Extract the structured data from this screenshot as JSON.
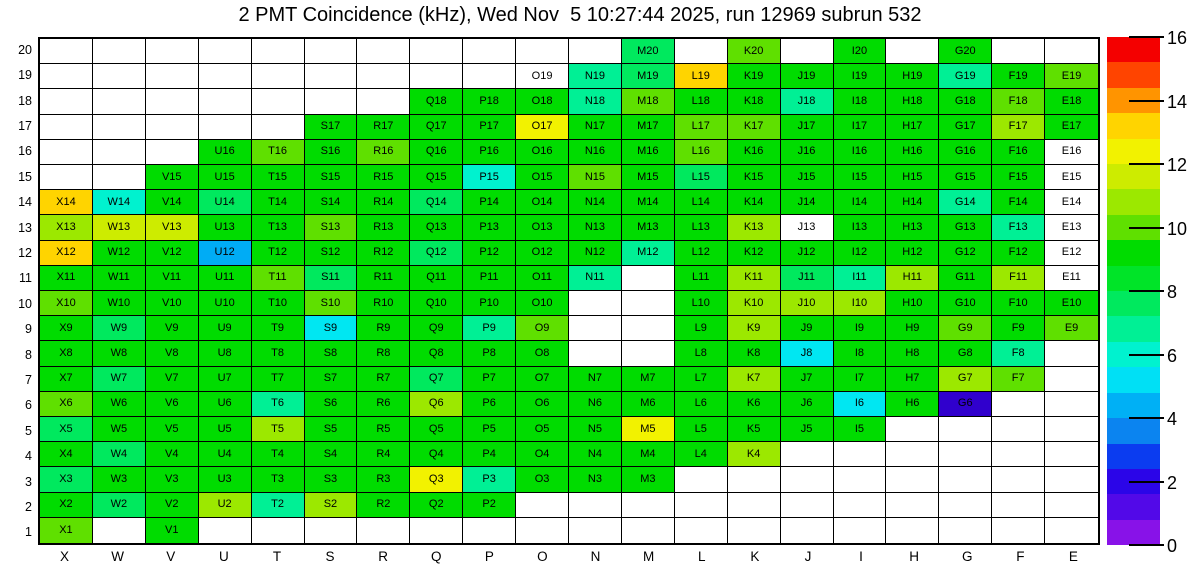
{
  "title": "2 PMT Coincidence (kHz), Wed Nov  5 10:27:44 2025, run 12969 subrun 532",
  "chart_data": {
    "type": "heatmap",
    "title": "2 PMT Coincidence (kHz), Wed Nov  5 10:27:44 2025, run 12969 subrun 532",
    "run": 12969,
    "subrun": 532,
    "timestamp": "Wed Nov  5 10:27:44 2025",
    "unit": "kHz",
    "columns": [
      "X",
      "W",
      "V",
      "U",
      "T",
      "S",
      "R",
      "Q",
      "P",
      "O",
      "N",
      "M",
      "L",
      "K",
      "J",
      "I",
      "H",
      "G",
      "F",
      "E"
    ],
    "rows": [
      20,
      19,
      18,
      17,
      16,
      15,
      14,
      13,
      12,
      11,
      10,
      9,
      8,
      7,
      6,
      5,
      4,
      3,
      2,
      1
    ],
    "colorbar": {
      "min": 0,
      "max": 16,
      "ticks": [
        0,
        2,
        4,
        6,
        8,
        10,
        12,
        14,
        16
      ],
      "band_colors_bottom_to_top": [
        "#8812e8",
        "#5209e8",
        "#2b05e8",
        "#0b3cf0",
        "#0b84f0",
        "#00b0f5",
        "#00e0f5",
        "#00f2cf",
        "#00f095",
        "#00e95e",
        "#00e428",
        "#00dc00",
        "#5fe000",
        "#9ce800",
        "#cdec00",
        "#f2f200",
        "#ffd400",
        "#ff9400",
        "#ff4400",
        "#f40000"
      ]
    },
    "palette": {
      "empty": {
        "hex": "#ffffff",
        "kHz": null
      },
      "indigo": {
        "hex": "#3000cd",
        "kHz": 2.0
      },
      "sky": {
        "hex": "#00acf5",
        "kHz": 4.4
      },
      "cyan": {
        "hex": "#00e7f2",
        "kHz": 5.2
      },
      "turq": {
        "hex": "#00f2cf",
        "kHz": 6.0
      },
      "mint": {
        "hex": "#00f095",
        "kHz": 6.8
      },
      "spring": {
        "hex": "#00e95e",
        "kHz": 7.6
      },
      "green": {
        "hex": "#00dc00",
        "kHz": 9.2
      },
      "ltgreen": {
        "hex": "#5fe000",
        "kHz": 10.0
      },
      "ygreen": {
        "hex": "#9ce800",
        "kHz": 10.8
      },
      "lime": {
        "hex": "#cdec00",
        "kHz": 11.6
      },
      "yellow": {
        "hex": "#f2f200",
        "kHz": 12.4
      },
      "gold": {
        "hex": "#ffd400",
        "kHz": 13.2
      }
    },
    "cells": [
      [
        null,
        null,
        null,
        null,
        null,
        null,
        null,
        null,
        null,
        null,
        null,
        "M20:spring",
        null,
        "K20:ltgreen",
        null,
        "I20:green",
        null,
        "G20:green",
        null,
        null
      ],
      [
        null,
        null,
        null,
        null,
        null,
        null,
        null,
        null,
        null,
        "O19:empty",
        "N19:mint",
        "M19:spring",
        "L19:gold",
        "K19:green",
        "J19:green",
        "I19:green",
        "H19:green",
        "G19:mint",
        "F19:green",
        "E19:ltgreen"
      ],
      [
        null,
        null,
        null,
        null,
        null,
        null,
        null,
        "Q18:green",
        "P18:green",
        "O18:green",
        "N18:mint",
        "M18:ltgreen",
        "L18:green",
        "K18:green",
        "J18:mint",
        "I18:green",
        "H18:green",
        "G18:green",
        "F18:ltgreen",
        "E18:green"
      ],
      [
        null,
        null,
        null,
        null,
        null,
        "S17:green",
        "R17:green",
        "Q17:green",
        "P17:green",
        "O17:yellow",
        "N17:green",
        "M17:green",
        "L17:ltgreen",
        "K17:ltgreen",
        "J17:green",
        "I17:green",
        "H17:green",
        "G17:green",
        "F17:ygreen",
        "E17:green"
      ],
      [
        null,
        null,
        null,
        "U16:green",
        "T16:ltgreen",
        "S16:green",
        "R16:ltgreen",
        "Q16:green",
        "P16:green",
        "O16:green",
        "N16:green",
        "M16:green",
        "L16:ltgreen",
        "K16:green",
        "J16:green",
        "I16:green",
        "H16:green",
        "G16:green",
        "F16:green",
        "E16:empty"
      ],
      [
        null,
        null,
        "V15:green",
        "U15:green",
        "T15:green",
        "S15:green",
        "R15:green",
        "Q15:green",
        "P15:turq",
        "O15:green",
        "N15:ltgreen",
        "M15:green",
        "L15:spring",
        "K15:green",
        "J15:green",
        "I15:green",
        "H15:green",
        "G15:green",
        "F15:green",
        "E15:empty"
      ],
      [
        "X14:gold",
        "W14:turq",
        "V14:green",
        "U14:spring",
        "T14:green",
        "S14:green",
        "R14:green",
        "Q14:spring",
        "P14:green",
        "O14:green",
        "N14:green",
        "M14:green",
        "L14:green",
        "K14:green",
        "J14:green",
        "I14:green",
        "H14:green",
        "G14:mint",
        "F14:green",
        "E14:empty"
      ],
      [
        "X13:ygreen",
        "W13:lime",
        "V13:lime",
        "U13:green",
        "T13:green",
        "S13:ltgreen",
        "R13:green",
        "Q13:green",
        "P13:green",
        "O13:green",
        "N13:green",
        "M13:green",
        "L13:green",
        "K13:ygreen",
        "J13:empty",
        "I13:green",
        "H13:green",
        "G13:green",
        "F13:mint",
        "E13:empty"
      ],
      [
        "X12:gold",
        "W12:green",
        "V12:green",
        "U12:sky",
        "T12:green",
        "S12:green",
        "R12:green",
        "Q12:spring",
        "P12:green",
        "O12:green",
        "N12:green",
        "M12:mint",
        "L12:green",
        "K12:green",
        "J12:green",
        "I12:green",
        "H12:green",
        "G12:green",
        "F12:green",
        "E12:empty"
      ],
      [
        "X11:green",
        "W11:green",
        "V11:green",
        "U11:green",
        "T11:ltgreen",
        "S11:spring",
        "R11:green",
        "Q11:green",
        "P11:green",
        "O11:green",
        "N11:mint",
        null,
        "L11:green",
        "K11:ygreen",
        "J11:spring",
        "I11:mint",
        "H11:ygreen",
        "G11:green",
        "F11:ygreen",
        "E11:empty"
      ],
      [
        "X10:ltgreen",
        "W10:green",
        "V10:green",
        "U10:green",
        "T10:green",
        "S10:ltgreen",
        "R10:green",
        "Q10:green",
        "P10:green",
        "O10:green",
        null,
        null,
        "L10:green",
        "K10:ygreen",
        "J10:ygreen",
        "I10:ygreen",
        "H10:green",
        "G10:green",
        "F10:green",
        "E10:green"
      ],
      [
        "X9:green",
        "W9:spring",
        "V9:green",
        "U9:green",
        "T9:green",
        "S9:cyan",
        "R9:green",
        "Q9:green",
        "P9:mint",
        "O9:ltgreen",
        null,
        null,
        "L9:green",
        "K9:ygreen",
        "J9:green",
        "I9:green",
        "H9:green",
        "G9:ltgreen",
        "F9:green",
        "E9:ltgreen"
      ],
      [
        "X8:green",
        "W8:green",
        "V8:green",
        "U8:green",
        "T8:green",
        "S8:green",
        "R8:green",
        "Q8:green",
        "P8:green",
        "O8:green",
        null,
        null,
        "L8:green",
        "K8:green",
        "J8:cyan",
        "I8:green",
        "H8:green",
        "G8:green",
        "F8:mint",
        null
      ],
      [
        "X7:green",
        "W7:spring",
        "V7:green",
        "U7:green",
        "T7:green",
        "S7:green",
        "R7:green",
        "Q7:spring",
        "P7:green",
        "O7:green",
        "N7:green",
        "M7:green",
        "L7:green",
        "K7:ygreen",
        "J7:green",
        "I7:green",
        "H7:green",
        "G7:ygreen",
        "F7:ltgreen",
        null
      ],
      [
        "X6:ltgreen",
        "W6:green",
        "V6:green",
        "U6:green",
        "T6:mint",
        "S6:green",
        "R6:green",
        "Q6:ygreen",
        "P6:green",
        "O6:green",
        "N6:green",
        "M6:green",
        "L6:green",
        "K6:green",
        "J6:green",
        "I6:cyan",
        "H6:green",
        "G6:indigo",
        null,
        null
      ],
      [
        "X5:spring",
        "W5:green",
        "V5:green",
        "U5:green",
        "T5:ygreen",
        "S5:green",
        "R5:green",
        "Q5:green",
        "P5:green",
        "O5:green",
        "N5:green",
        "M5:yellow",
        "L5:green",
        "K5:green",
        "J5:green",
        "I5:green",
        null,
        null,
        null,
        null
      ],
      [
        "X4:green",
        "W4:spring",
        "V4:green",
        "U4:green",
        "T4:green",
        "S4:green",
        "R4:green",
        "Q4:green",
        "P4:green",
        "O4:green",
        "N4:green",
        "M4:green",
        "L4:green",
        "K4:ygreen",
        null,
        null,
        null,
        null,
        null,
        null
      ],
      [
        "X3:spring",
        "W3:green",
        "V3:green",
        "U3:green",
        "T3:green",
        "S3:green",
        "R3:green",
        "Q3:yellow",
        "P3:mint",
        "O3:green",
        "N3:green",
        "M3:green",
        null,
        null,
        null,
        null,
        null,
        null,
        null,
        null
      ],
      [
        "X2:green",
        "W2:spring",
        "V2:green",
        "U2:ygreen",
        "T2:mint",
        "S2:ygreen",
        "R2:green",
        "Q2:green",
        "P2:green",
        null,
        null,
        null,
        null,
        null,
        null,
        null,
        null,
        null,
        null,
        null
      ],
      [
        "X1:ltgreen",
        null,
        "V1:green",
        null,
        null,
        null,
        null,
        null,
        null,
        null,
        null,
        null,
        null,
        null,
        null,
        null,
        null,
        null,
        null,
        null
      ]
    ]
  }
}
